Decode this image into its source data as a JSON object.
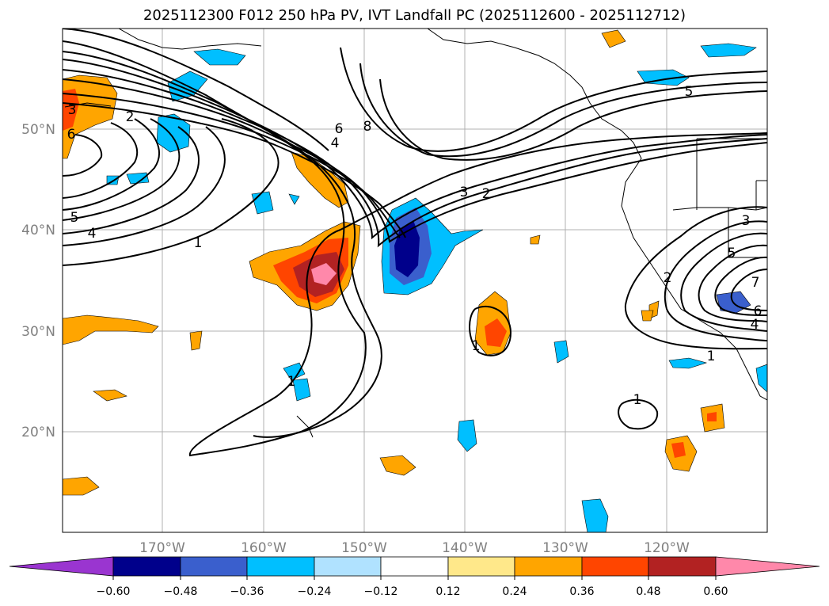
{
  "title": "2025112300 F012 250 hPa PV, IVT Landfall PC (2025112600 - 2025112712)",
  "map": {
    "lat_labels": [
      "50°N",
      "40°N",
      "30°N",
      "20°N"
    ],
    "lon_labels": [
      "170°W",
      "160°W",
      "150°W",
      "140°W",
      "130°W",
      "120°W"
    ]
  },
  "contour_labels": {
    "a": "3",
    "b": "2",
    "c": "6",
    "d": "5",
    "e": "4",
    "f": "1",
    "g": "6",
    "h": "8",
    "i": "4",
    "j": "3",
    "k": "2",
    "l": "5",
    "m": "3",
    "n": "5",
    "o": "2",
    "p": "7",
    "q": "6",
    "r": "4",
    "s": "1",
    "t": "1",
    "u": "1",
    "v": "1"
  },
  "colorbar": {
    "ticks": [
      "−0.60",
      "−0.48",
      "−0.36",
      "−0.24",
      "−0.12",
      "0.12",
      "0.24",
      "0.36",
      "0.48",
      "0.60"
    ],
    "colors": {
      "under": "#9a35d0",
      "neg060": "#00008b",
      "neg048": "#3a5fcd",
      "neg036": "#00bfff",
      "neg024": "#b0e2ff",
      "neutral": "#ffffff",
      "pos012": "#ffe88a",
      "pos024": "#ffa500",
      "pos036": "#ff4500",
      "pos048": "#b22222",
      "over": "#ff88aa"
    }
  }
}
